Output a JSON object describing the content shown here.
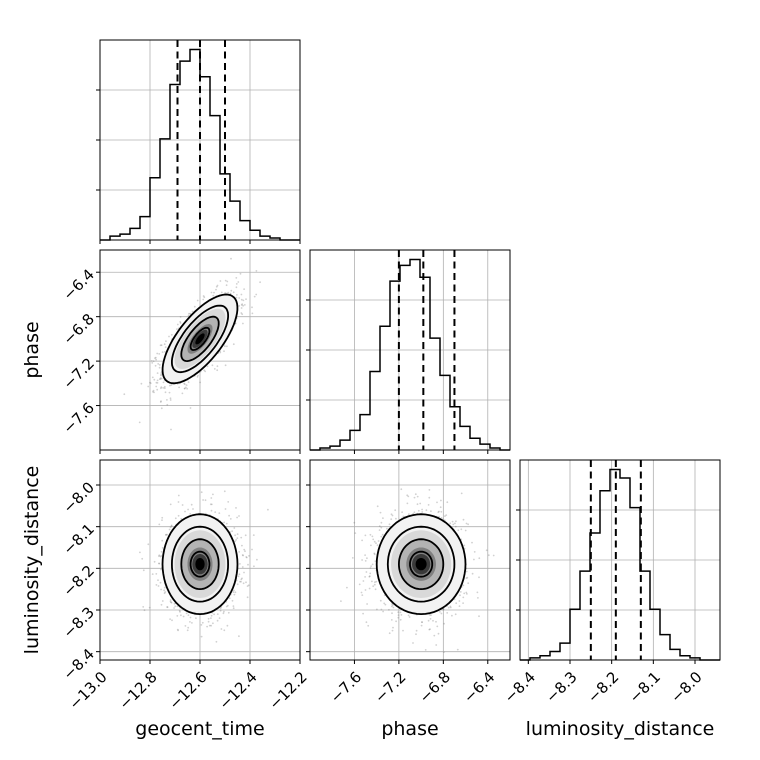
{
  "chart_data": {
    "type": "corner",
    "parameters": [
      "geocent_time",
      "phase",
      "luminosity_distance"
    ],
    "grid": true,
    "axes": {
      "geocent_time": {
        "range": [
          -13.0,
          -12.2
        ],
        "ticks": [
          -13.0,
          -12.8,
          -12.6,
          -12.4,
          -12.2
        ],
        "tick_labels": [
          "−13.0",
          "−12.8",
          "−12.6",
          "−12.4",
          "−12.2"
        ]
      },
      "phase": {
        "range": [
          -8.0,
          -6.2
        ],
        "ticks": [
          -7.6,
          -7.2,
          -6.8,
          -6.4
        ],
        "tick_labels": [
          "−7.6",
          "−7.2",
          "−6.8",
          "−6.4"
        ]
      },
      "luminosity_distance": {
        "range": [
          -8.42,
          -7.94
        ],
        "ticks": [
          -8.4,
          -8.3,
          -8.2,
          -8.1,
          -8.0
        ],
        "tick_labels": [
          "−8.4",
          "−8.3",
          "−8.2",
          "−8.1",
          "−8.0"
        ]
      }
    },
    "marginals": {
      "geocent_time": {
        "quantiles": [
          -12.69,
          -12.6,
          -12.5
        ],
        "bin_edges": [
          -13.0,
          -12.96,
          -12.92,
          -12.88,
          -12.84,
          -12.8,
          -12.76,
          -12.72,
          -12.68,
          -12.64,
          -12.6,
          -12.56,
          -12.52,
          -12.48,
          -12.44,
          -12.4,
          -12.36,
          -12.32,
          -12.28,
          -12.24,
          -12.2
        ],
        "counts": [
          0,
          2,
          3,
          6,
          12,
          32,
          52,
          80,
          92,
          98,
          84,
          64,
          34,
          20,
          10,
          5,
          2,
          1,
          0,
          0
        ]
      },
      "phase": {
        "quantiles": [
          -7.2,
          -6.98,
          -6.7
        ],
        "bin_edges": [
          -8.0,
          -7.91,
          -7.82,
          -7.73,
          -7.64,
          -7.55,
          -7.46,
          -7.37,
          -7.28,
          -7.19,
          -7.1,
          -7.01,
          -6.92,
          -6.83,
          -6.74,
          -6.65,
          -6.56,
          -6.47,
          -6.38,
          -6.29,
          -6.2
        ],
        "counts": [
          0,
          1,
          2,
          5,
          10,
          18,
          40,
          63,
          86,
          94,
          97,
          88,
          57,
          38,
          22,
          12,
          6,
          3,
          1,
          0
        ]
      },
      "luminosity_distance": {
        "quantiles": [
          -8.25,
          -8.19,
          -8.13
        ],
        "bin_edges": [
          -8.42,
          -8.396,
          -8.372,
          -8.348,
          -8.324,
          -8.3,
          -8.276,
          -8.252,
          -8.228,
          -8.204,
          -8.18,
          -8.156,
          -8.132,
          -8.108,
          -8.084,
          -8.06,
          -8.036,
          -8.012,
          -7.988,
          -7.964,
          -7.94
        ],
        "counts": [
          0,
          1,
          2,
          4,
          8,
          24,
          42,
          60,
          80,
          90,
          86,
          72,
          42,
          24,
          12,
          5,
          2,
          1,
          0,
          0
        ]
      }
    },
    "joint": {
      "phase_vs_geocent_time": {
        "mean": [
          -12.6,
          -7.0
        ],
        "sigma": [
          0.075,
          0.2
        ],
        "correlation": 0.7
      },
      "luminosity_distance_vs_geocent_time": {
        "mean": [
          -12.6,
          -8.19
        ],
        "sigma": [
          0.075,
          0.06
        ],
        "correlation": 0.0
      },
      "luminosity_distance_vs_phase": {
        "mean": [
          -7.0,
          -8.19
        ],
        "sigma": [
          0.2,
          0.06
        ],
        "correlation": 0.0
      }
    }
  }
}
